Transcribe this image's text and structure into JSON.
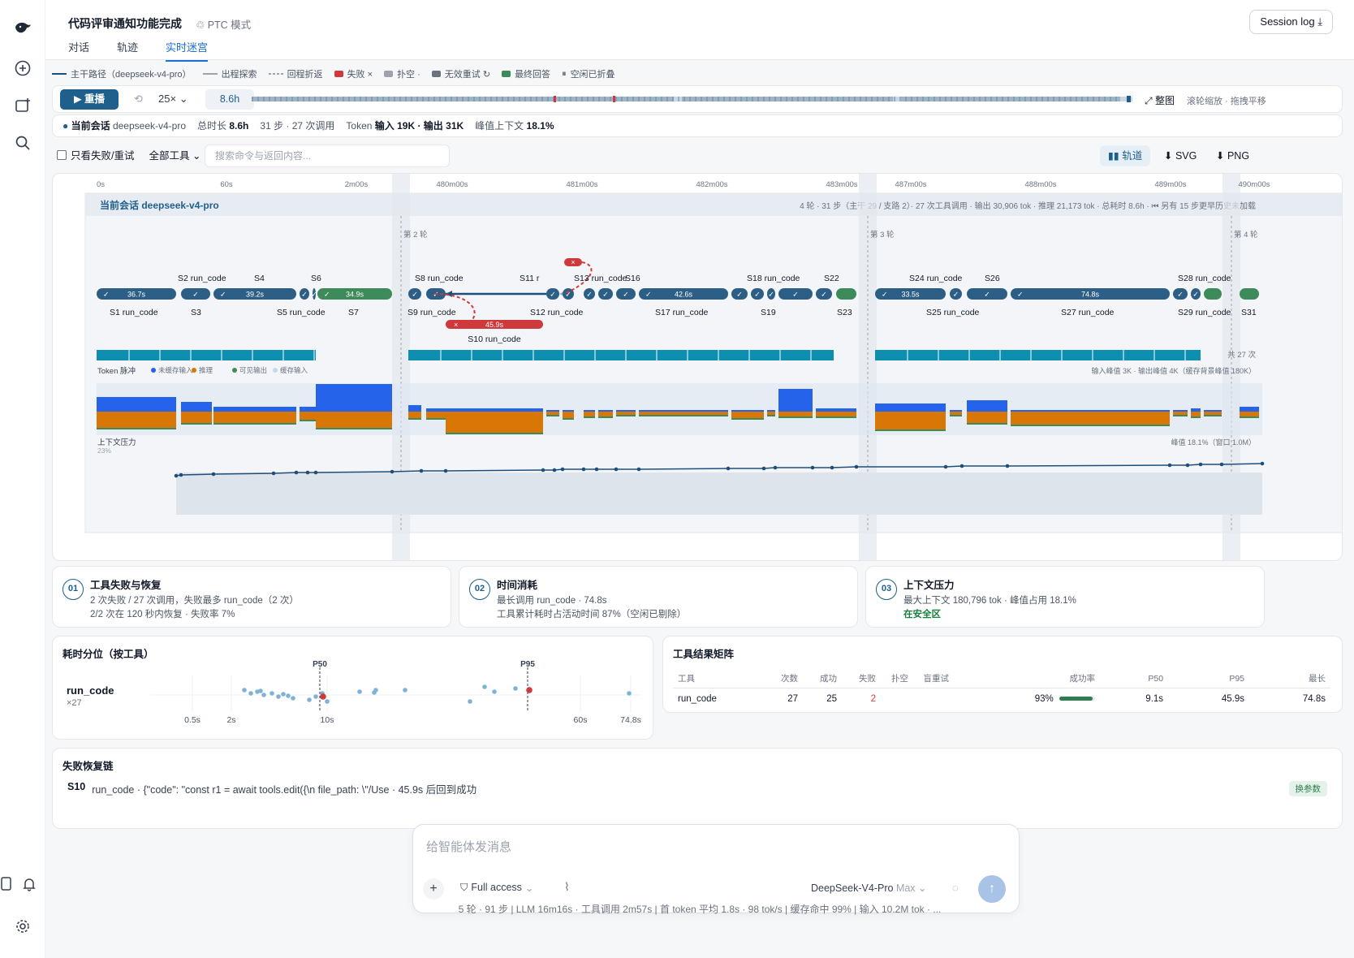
{
  "app": {
    "title": "代码评审通知功能完成",
    "mode_label": "PTC 模式",
    "session_log_label": "Session log"
  },
  "tabs": [
    {
      "label": "对话"
    },
    {
      "label": "轨迹"
    },
    {
      "label": "实时迷宫",
      "active": true
    }
  ],
  "legend": [
    {
      "label": "主干路径（deepseek-v4-pro）",
      "kind": "line",
      "color": "#1e4f7a"
    },
    {
      "label": "出程探索",
      "kind": "line",
      "color": "#9ca3af"
    },
    {
      "label": "回程折返",
      "kind": "dash",
      "color": "#9ca3af"
    },
    {
      "label": "失败 ×",
      "kind": "box",
      "color": "#d0393b"
    },
    {
      "label": "扑空 ·",
      "kind": "box",
      "color": "#9ca3af"
    },
    {
      "label": "无效重试 ↻",
      "kind": "box",
      "color": "#6b7280"
    },
    {
      "label": "最终回答",
      "kind": "box",
      "color": "#3d8a5a"
    },
    {
      "label": "空闲已折叠",
      "kind": "pause",
      "color": "#6b7280"
    }
  ],
  "player": {
    "replay_label": "重播",
    "speed": "25×",
    "duration": "8.6h",
    "fit_label": "整图",
    "hint": "滚轮缩放 · 拖拽平移"
  },
  "session_info": {
    "label": "当前会话",
    "model": "deepseek-v4-pro",
    "total_label": "总时长",
    "total": "8.6h",
    "steps": "31 步 · 27 次调用",
    "token_label": "Token",
    "token_io": "输入 19K · 输出 31K",
    "peak_label": "峰值上下文",
    "peak": "18.1%"
  },
  "filters": {
    "only_failed_label": "只看失败/重试",
    "tool_select": "全部工具",
    "search_placeholder": "搜索命令与返回内容..."
  },
  "views": {
    "trajectory": "轨道",
    "svg": "SVG",
    "png": "PNG"
  },
  "maze": {
    "session_label": "当前会话 deepseek-v4-pro",
    "summary": "4 轮 · 31 步（主干 29 / 支路 2）· 27 次工具调用 · 输出 30,906 tok · 推理 21,173 tok · 总耗时 8.6h · ⏮ 另有 15 步更早历史未加载",
    "time_ticks": [
      "0s",
      "60s",
      "2m00s",
      "480m00s",
      "481m00s",
      "482m00s",
      "483m00s",
      "487m00s",
      "488m00s",
      "489m00s",
      "490m00s"
    ],
    "rounds": [
      "第 2 轮",
      "第 3 轮",
      "第 4 轮"
    ],
    "upper_labels": [
      "S2 run_code",
      "S4",
      "S6",
      "S8 run_code",
      "S11 r",
      "S13 run_code",
      "S16",
      "S18 run_code",
      "S22",
      "S24 run_code",
      "S26",
      "S28 run_code"
    ],
    "lower_labels": [
      "S1 run_code",
      "S3",
      "S5 run_code",
      "S7",
      "S9 run_code",
      "S12 run_code",
      "S17 run_code",
      "S19",
      "S23",
      "S25 run_code",
      "S27 run_code",
      "S29 run_code",
      "S31"
    ],
    "durations": [
      "36.7s",
      "39.2s",
      "34.9s",
      "42.6s",
      "33.5s",
      "74.8s"
    ],
    "branch_label": "S10 run_code",
    "branch_duration": "45.9s",
    "tool_count": "共 27 次",
    "token_title": "Token 脉冲",
    "token_legend": [
      {
        "label": "未缓存输入",
        "color": "#2563eb"
      },
      {
        "label": "推理",
        "color": "#d97706"
      },
      {
        "label": "可见输出",
        "color": "#3d8a5a"
      },
      {
        "label": "缓存输入",
        "color": "#c7d7ea"
      }
    ],
    "token_note": "输入峰值 3K · 输出峰值 4K（缓存背景峰值 180K）",
    "ctx_title": "上下文压力",
    "ctx_scale": "23%",
    "ctx_note": "峰值 18.1%（窗口 1.0M）"
  },
  "cards": [
    {
      "num": "01",
      "title": "工具失败与恢复",
      "line1": "2 次失败 / 27 次调用，失败最多 run_code（2 次）",
      "line2": "2/2 次在 120 秒内恢复 · 失败率 7%"
    },
    {
      "num": "02",
      "title": "时间消耗",
      "line1": "最长调用 run_code · 74.8s",
      "line2": "工具累计耗时占活动时间 87%（空闲已剔除）"
    },
    {
      "num": "03",
      "title": "上下文压力",
      "line1": "最大上下文 180,796 tok · 峰值占用 18.1%",
      "line2": "在安全区"
    }
  ],
  "percentiles": {
    "title": "耗时分位（按工具）",
    "tool": "run_code",
    "count": "×27",
    "p50_label": "P50",
    "p95_label": "P95",
    "axis": [
      "0.5s",
      "2s",
      "10s",
      "60s",
      "74.8s"
    ]
  },
  "matrix": {
    "title": "工具结果矩阵",
    "headers": [
      "工具",
      "次数",
      "成功",
      "失败",
      "扑空",
      "盲重试",
      "成功率",
      "P50",
      "P95",
      "最长"
    ],
    "rows": [
      {
        "tool": "run_code",
        "count": "27",
        "success": "25",
        "fail": "2",
        "miss": "",
        "blind": "",
        "rate": "93%",
        "rate_value": 0.93,
        "p50": "9.1s",
        "p95": "45.9s",
        "max": "74.8s"
      }
    ]
  },
  "recovery": {
    "title": "失败恢复链",
    "items": [
      {
        "step": "S10",
        "text": "run_code · {\"code\": \"const r1 = await tools.edit({\\n file_path: \\\"/Use · 45.9s 后回到成功",
        "tag": "换参数"
      }
    ]
  },
  "composer": {
    "placeholder": "给智能体发消息",
    "access": "Full access",
    "model": "DeepSeek-V4-Pro",
    "effort": "Max"
  },
  "footer": "5 轮 · 91 步  |  LLM 16m16s · 工具调用 2m57s  |  首 token 平均 1.8s · 98 tok/s  |  缓存命中 99%  |  输入 10.2M tok · ..."
}
